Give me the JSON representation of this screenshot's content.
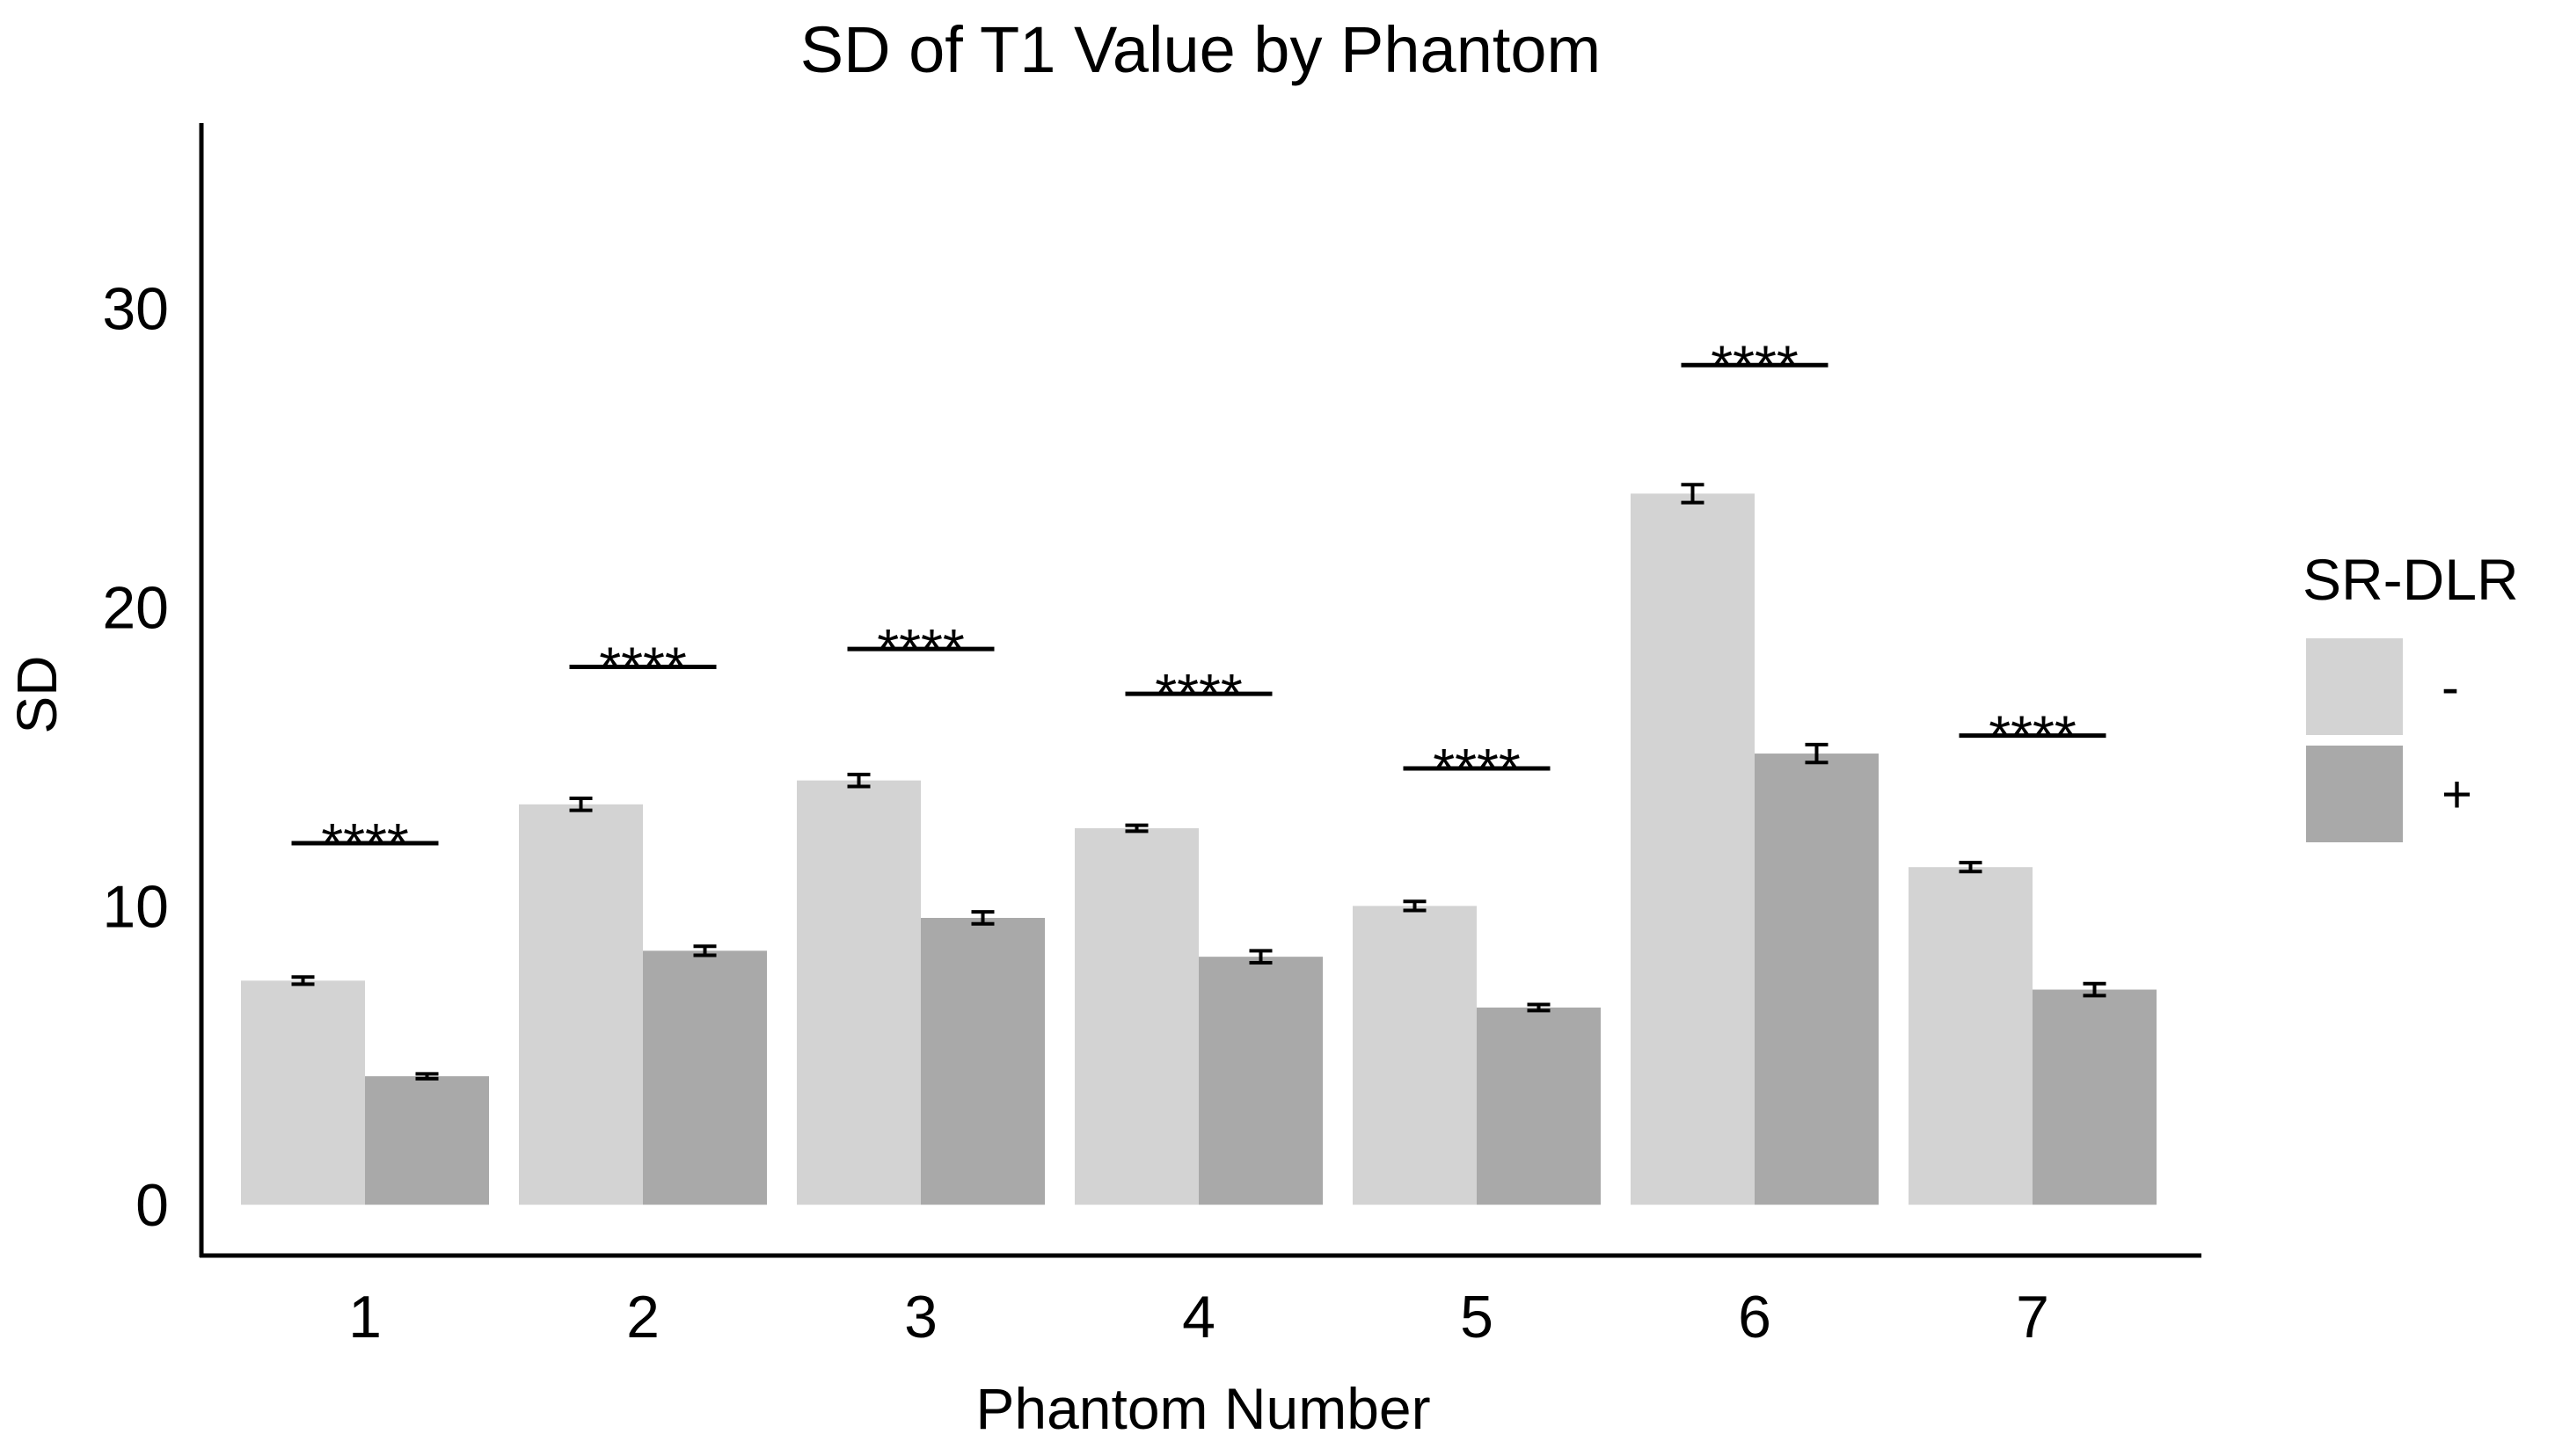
{
  "chart_data": {
    "type": "bar",
    "title": "SD of T1 Value by Phantom",
    "xlabel": "Phantom Number",
    "ylabel": "SD",
    "ylim": [
      -1.7,
      36.2
    ],
    "yticks": [
      0,
      10,
      20,
      30
    ],
    "categories": [
      "1",
      "2",
      "3",
      "4",
      "5",
      "6",
      "7"
    ],
    "series": [
      {
        "name": "-",
        "color": "#d3d3d3",
        "values": [
          7.5,
          13.4,
          14.2,
          12.6,
          10.0,
          23.8,
          11.3
        ],
        "errors": [
          0.12,
          0.2,
          0.2,
          0.1,
          0.15,
          0.3,
          0.15
        ]
      },
      {
        "name": "+",
        "color": "#a9a9a9",
        "values": [
          4.3,
          8.5,
          9.6,
          8.3,
          6.6,
          15.1,
          7.2
        ],
        "errors": [
          0.08,
          0.15,
          0.2,
          0.2,
          0.1,
          0.3,
          0.2
        ]
      }
    ],
    "significance": {
      "label": "****",
      "y": [
        12.1,
        18.0,
        18.6,
        17.1,
        14.6,
        28.1,
        15.7
      ]
    },
    "legend": {
      "title": "SR-DLR",
      "position": "right",
      "entries": [
        "-",
        "+"
      ]
    },
    "grid": false
  }
}
